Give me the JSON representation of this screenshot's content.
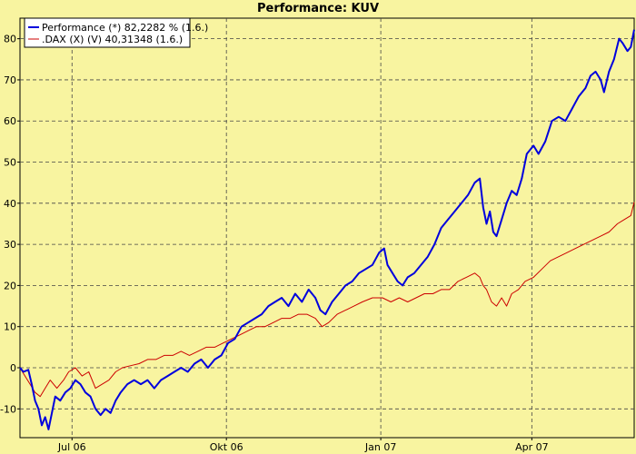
{
  "chart_data": {
    "type": "line",
    "title": "Performance: KUV",
    "xlabel": "",
    "ylabel": "",
    "ylim": [
      -17,
      85
    ],
    "x_range": [
      "2006-05-31",
      "2007-06-01"
    ],
    "x_ticks": [
      {
        "label": "Jul 06",
        "date": "2006-07-01"
      },
      {
        "label": "Okt 06",
        "date": "2006-10-01"
      },
      {
        "label": "Jan 07",
        "date": "2007-01-01"
      },
      {
        "label": "Apr 07",
        "date": "2007-04-01"
      }
    ],
    "y_ticks": [
      -10,
      0,
      10,
      20,
      30,
      40,
      50,
      60,
      70,
      80
    ],
    "grid": true,
    "legend_position": "top-left",
    "series": [
      {
        "name": "Performance (*) 82,2282 % (1.6.)",
        "color": "#0000dd",
        "points": [
          [
            "2006-05-31",
            0
          ],
          [
            "2006-06-02",
            -1
          ],
          [
            "2006-06-05",
            -0.5
          ],
          [
            "2006-06-07",
            -4
          ],
          [
            "2006-06-09",
            -8
          ],
          [
            "2006-06-11",
            -10
          ],
          [
            "2006-06-13",
            -14
          ],
          [
            "2006-06-15",
            -12
          ],
          [
            "2006-06-17",
            -15
          ],
          [
            "2006-06-19",
            -11
          ],
          [
            "2006-06-21",
            -7
          ],
          [
            "2006-06-24",
            -8
          ],
          [
            "2006-06-27",
            -6
          ],
          [
            "2006-06-30",
            -5
          ],
          [
            "2006-07-03",
            -3
          ],
          [
            "2006-07-06",
            -4
          ],
          [
            "2006-07-09",
            -6
          ],
          [
            "2006-07-12",
            -7
          ],
          [
            "2006-07-15",
            -10
          ],
          [
            "2006-07-18",
            -11.5
          ],
          [
            "2006-07-21",
            -10
          ],
          [
            "2006-07-24",
            -11
          ],
          [
            "2006-07-27",
            -8
          ],
          [
            "2006-07-30",
            -6
          ],
          [
            "2006-08-03",
            -4
          ],
          [
            "2006-08-07",
            -3
          ],
          [
            "2006-08-11",
            -4
          ],
          [
            "2006-08-15",
            -3
          ],
          [
            "2006-08-19",
            -5
          ],
          [
            "2006-08-23",
            -3
          ],
          [
            "2006-08-27",
            -2
          ],
          [
            "2006-08-31",
            -1
          ],
          [
            "2006-09-04",
            0
          ],
          [
            "2006-09-08",
            -1
          ],
          [
            "2006-09-12",
            1
          ],
          [
            "2006-09-16",
            2
          ],
          [
            "2006-09-20",
            0
          ],
          [
            "2006-09-24",
            2
          ],
          [
            "2006-09-28",
            3
          ],
          [
            "2006-10-02",
            6
          ],
          [
            "2006-10-06",
            7
          ],
          [
            "2006-10-10",
            10
          ],
          [
            "2006-10-14",
            11
          ],
          [
            "2006-10-18",
            12
          ],
          [
            "2006-10-22",
            13
          ],
          [
            "2006-10-26",
            15
          ],
          [
            "2006-10-30",
            16
          ],
          [
            "2006-11-03",
            17
          ],
          [
            "2006-11-07",
            15
          ],
          [
            "2006-11-11",
            18
          ],
          [
            "2006-11-15",
            16
          ],
          [
            "2006-11-19",
            19
          ],
          [
            "2006-11-23",
            17
          ],
          [
            "2006-11-26",
            14
          ],
          [
            "2006-11-29",
            13
          ],
          [
            "2006-12-03",
            16
          ],
          [
            "2006-12-07",
            18
          ],
          [
            "2006-12-11",
            20
          ],
          [
            "2006-12-15",
            21
          ],
          [
            "2006-12-19",
            23
          ],
          [
            "2006-12-23",
            24
          ],
          [
            "2006-12-27",
            25
          ],
          [
            "2006-12-31",
            28
          ],
          [
            "2007-01-03",
            29
          ],
          [
            "2007-01-05",
            25
          ],
          [
            "2007-01-08",
            23
          ],
          [
            "2007-01-11",
            21
          ],
          [
            "2007-01-14",
            20
          ],
          [
            "2007-01-17",
            22
          ],
          [
            "2007-01-21",
            23
          ],
          [
            "2007-01-25",
            25
          ],
          [
            "2007-01-29",
            27
          ],
          [
            "2007-02-02",
            30
          ],
          [
            "2007-02-06",
            34
          ],
          [
            "2007-02-10",
            36
          ],
          [
            "2007-02-14",
            38
          ],
          [
            "2007-02-18",
            40
          ],
          [
            "2007-02-22",
            42
          ],
          [
            "2007-02-26",
            45
          ],
          [
            "2007-03-01",
            46
          ],
          [
            "2007-03-03",
            39
          ],
          [
            "2007-03-05",
            35
          ],
          [
            "2007-03-07",
            38
          ],
          [
            "2007-03-09",
            33
          ],
          [
            "2007-03-11",
            32
          ],
          [
            "2007-03-14",
            36
          ],
          [
            "2007-03-17",
            40
          ],
          [
            "2007-03-20",
            43
          ],
          [
            "2007-03-23",
            42
          ],
          [
            "2007-03-26",
            46
          ],
          [
            "2007-03-29",
            52
          ],
          [
            "2007-04-02",
            54
          ],
          [
            "2007-04-05",
            52
          ],
          [
            "2007-04-09",
            55
          ],
          [
            "2007-04-13",
            60
          ],
          [
            "2007-04-17",
            61
          ],
          [
            "2007-04-21",
            60
          ],
          [
            "2007-04-25",
            63
          ],
          [
            "2007-04-29",
            66
          ],
          [
            "2007-05-03",
            68
          ],
          [
            "2007-05-06",
            71
          ],
          [
            "2007-05-09",
            72
          ],
          [
            "2007-05-12",
            70
          ],
          [
            "2007-05-14",
            67
          ],
          [
            "2007-05-17",
            72
          ],
          [
            "2007-05-20",
            75
          ],
          [
            "2007-05-23",
            80
          ],
          [
            "2007-05-25",
            79
          ],
          [
            "2007-05-28",
            77
          ],
          [
            "2007-05-30",
            78
          ],
          [
            "2007-06-01",
            82.2
          ]
        ]
      },
      {
        "name": ".DAX (X) (V) 40,31348 (1.6.)",
        "color": "#cc0000",
        "points": [
          [
            "2006-05-31",
            0
          ],
          [
            "2006-06-03",
            -2
          ],
          [
            "2006-06-06",
            -4
          ],
          [
            "2006-06-09",
            -6
          ],
          [
            "2006-06-12",
            -7
          ],
          [
            "2006-06-15",
            -5
          ],
          [
            "2006-06-18",
            -3
          ],
          [
            "2006-06-22",
            -5
          ],
          [
            "2006-06-26",
            -3
          ],
          [
            "2006-06-29",
            -1
          ],
          [
            "2006-07-03",
            0
          ],
          [
            "2006-07-07",
            -2
          ],
          [
            "2006-07-11",
            -1
          ],
          [
            "2006-07-15",
            -5
          ],
          [
            "2006-07-19",
            -4
          ],
          [
            "2006-07-23",
            -3
          ],
          [
            "2006-07-27",
            -1
          ],
          [
            "2006-07-31",
            0
          ],
          [
            "2006-08-05",
            0.5
          ],
          [
            "2006-08-10",
            1
          ],
          [
            "2006-08-15",
            2
          ],
          [
            "2006-08-20",
            2
          ],
          [
            "2006-08-25",
            3
          ],
          [
            "2006-08-30",
            3
          ],
          [
            "2006-09-04",
            4
          ],
          [
            "2006-09-09",
            3
          ],
          [
            "2006-09-14",
            4
          ],
          [
            "2006-09-19",
            5
          ],
          [
            "2006-09-24",
            5
          ],
          [
            "2006-09-29",
            6
          ],
          [
            "2006-10-04",
            7
          ],
          [
            "2006-10-09",
            8
          ],
          [
            "2006-10-14",
            9
          ],
          [
            "2006-10-19",
            10
          ],
          [
            "2006-10-24",
            10
          ],
          [
            "2006-10-29",
            11
          ],
          [
            "2006-11-03",
            12
          ],
          [
            "2006-11-08",
            12
          ],
          [
            "2006-11-13",
            13
          ],
          [
            "2006-11-18",
            13
          ],
          [
            "2006-11-23",
            12
          ],
          [
            "2006-11-27",
            10
          ],
          [
            "2006-12-01",
            11
          ],
          [
            "2006-12-06",
            13
          ],
          [
            "2006-12-11",
            14
          ],
          [
            "2006-12-16",
            15
          ],
          [
            "2006-12-21",
            16
          ],
          [
            "2006-12-27",
            17
          ],
          [
            "2007-01-02",
            17
          ],
          [
            "2007-01-07",
            16
          ],
          [
            "2007-01-12",
            17
          ],
          [
            "2007-01-17",
            16
          ],
          [
            "2007-01-22",
            17
          ],
          [
            "2007-01-27",
            18
          ],
          [
            "2007-02-01",
            18
          ],
          [
            "2007-02-06",
            19
          ],
          [
            "2007-02-11",
            19
          ],
          [
            "2007-02-16",
            21
          ],
          [
            "2007-02-21",
            22
          ],
          [
            "2007-02-26",
            23
          ],
          [
            "2007-03-01",
            22
          ],
          [
            "2007-03-03",
            20
          ],
          [
            "2007-03-05",
            19
          ],
          [
            "2007-03-08",
            16
          ],
          [
            "2007-03-11",
            15
          ],
          [
            "2007-03-14",
            17
          ],
          [
            "2007-03-17",
            15
          ],
          [
            "2007-03-20",
            18
          ],
          [
            "2007-03-24",
            19
          ],
          [
            "2007-03-28",
            21
          ],
          [
            "2007-04-02",
            22
          ],
          [
            "2007-04-07",
            24
          ],
          [
            "2007-04-12",
            26
          ],
          [
            "2007-04-17",
            27
          ],
          [
            "2007-04-22",
            28
          ],
          [
            "2007-04-27",
            29
          ],
          [
            "2007-05-02",
            30
          ],
          [
            "2007-05-07",
            31
          ],
          [
            "2007-05-12",
            32
          ],
          [
            "2007-05-17",
            33
          ],
          [
            "2007-05-22",
            35
          ],
          [
            "2007-05-26",
            36
          ],
          [
            "2007-05-30",
            37
          ],
          [
            "2007-06-01",
            40.3
          ]
        ]
      }
    ]
  }
}
